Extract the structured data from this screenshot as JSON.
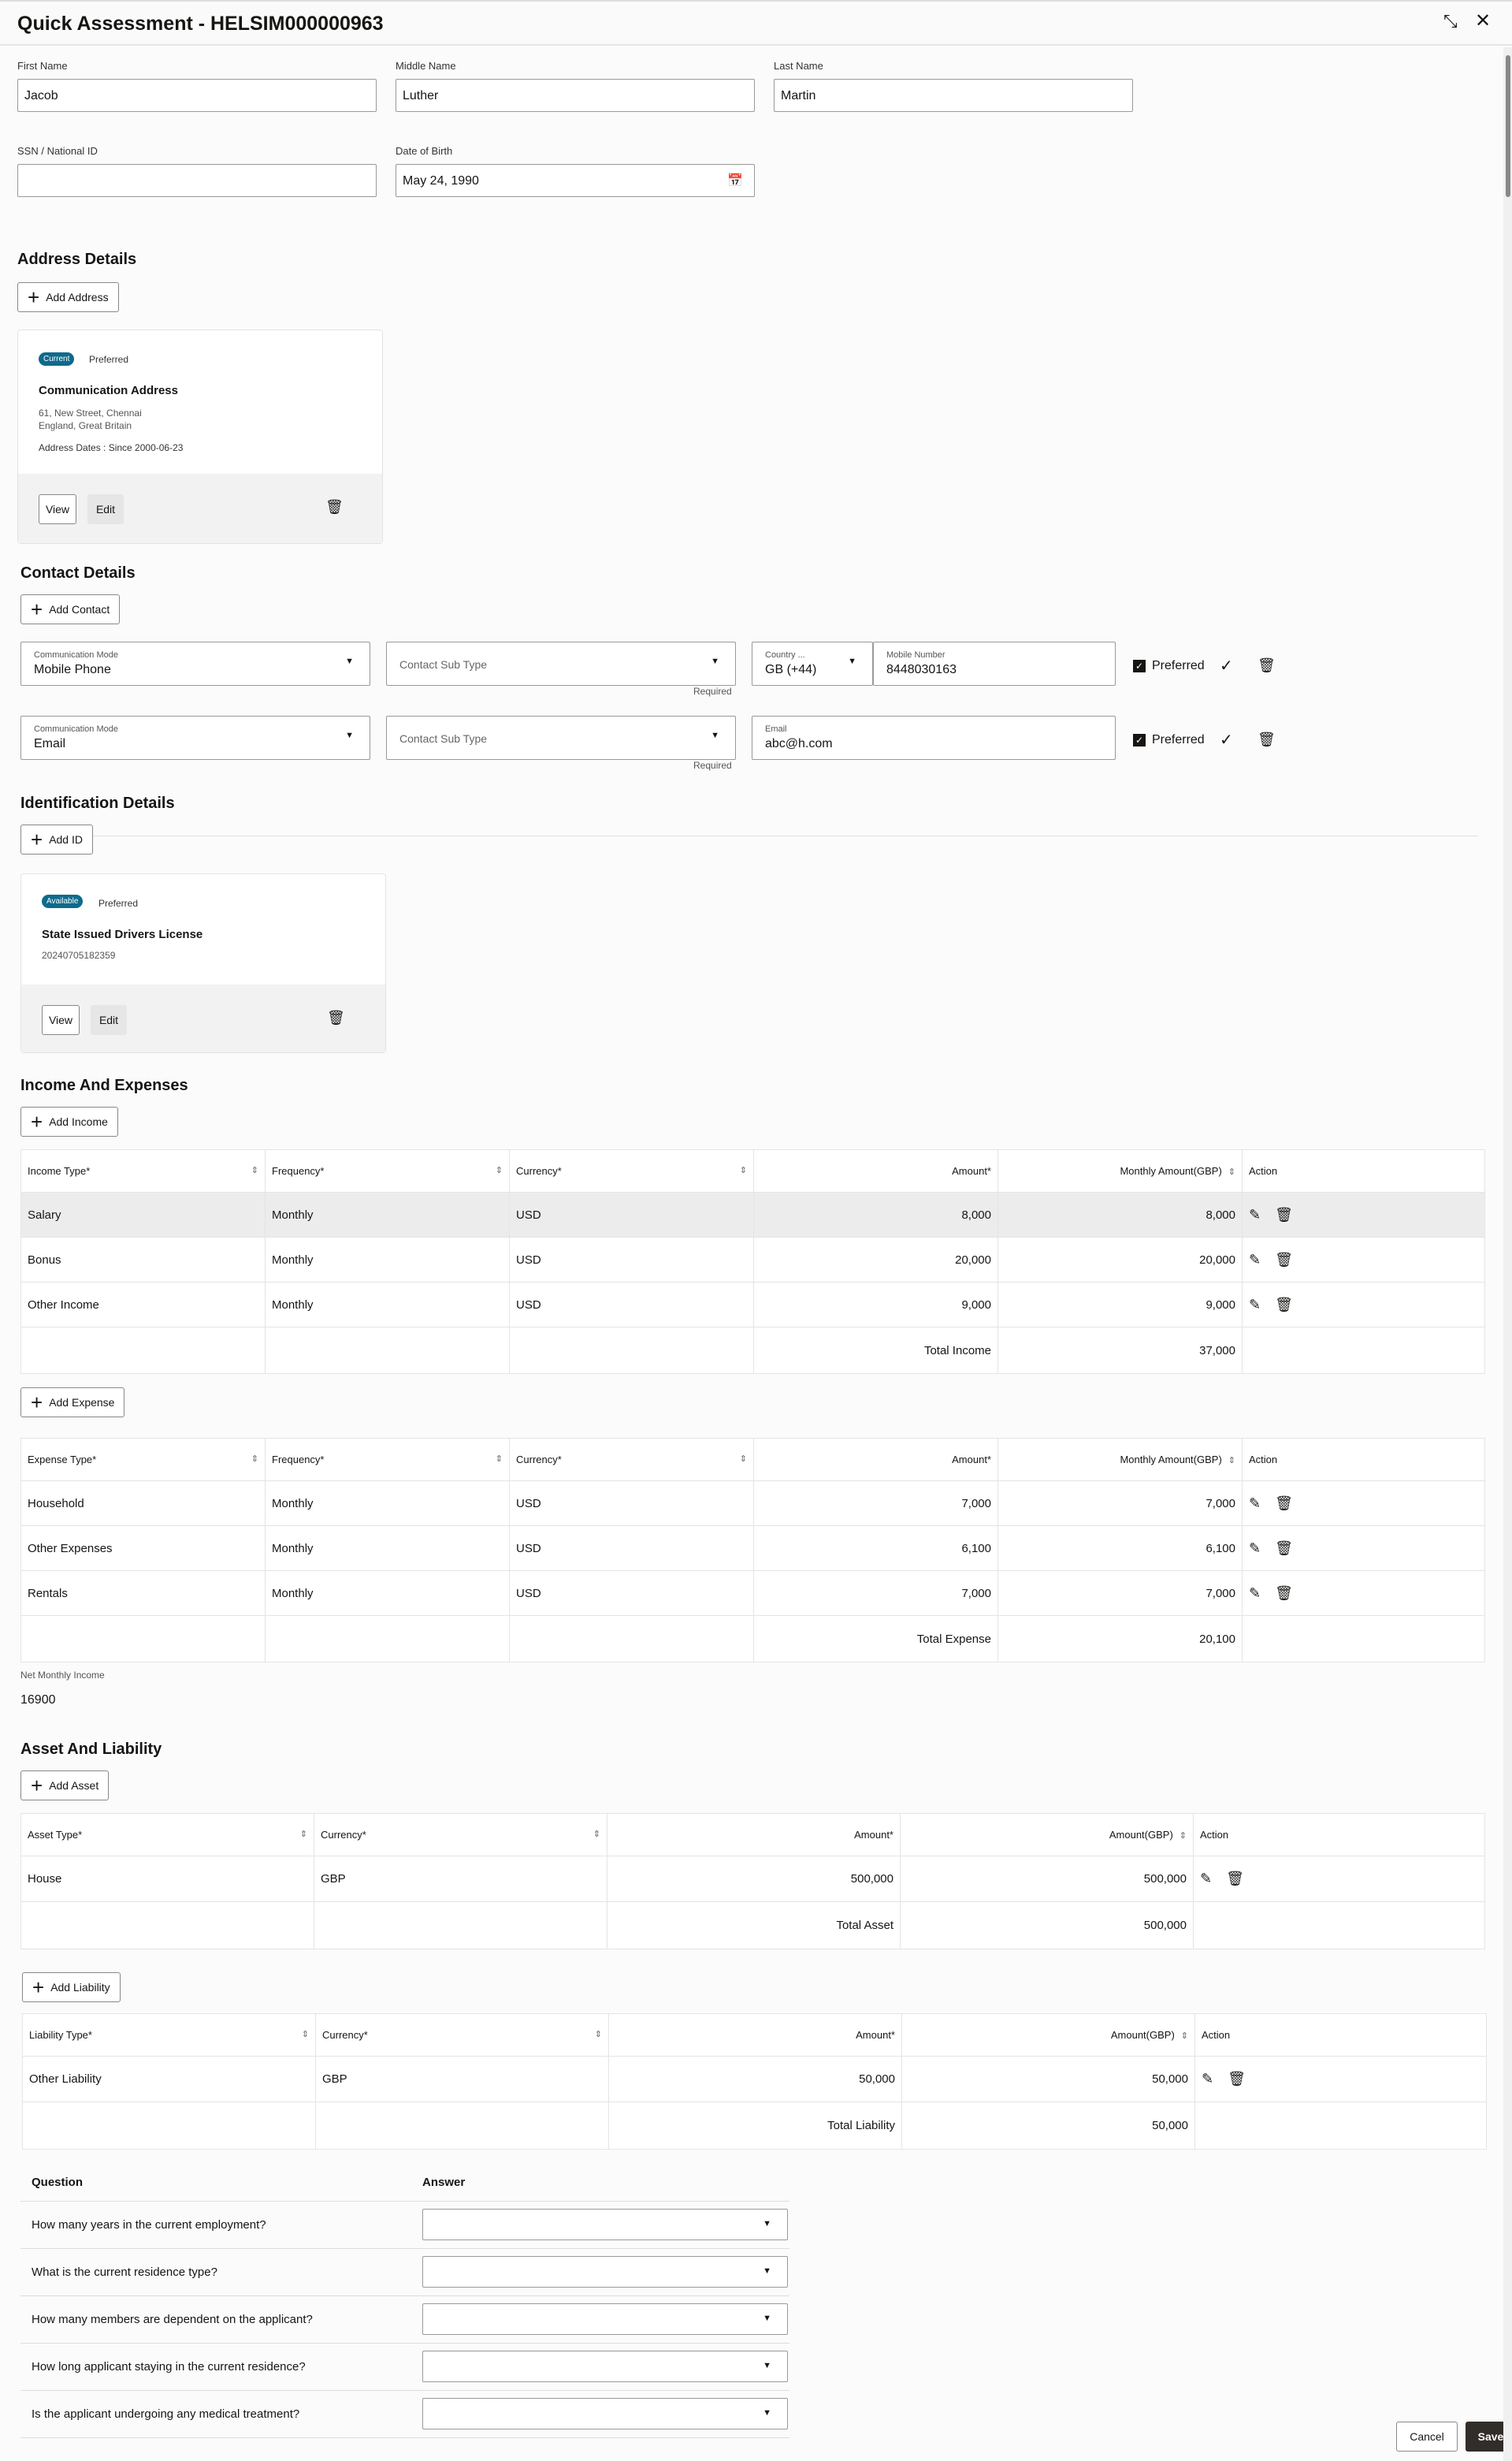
{
  "title": "Quick Assessment - HELSIM000000963",
  "personal": {
    "first_name_label": "First Name",
    "first_name": "Jacob",
    "middle_name_label": "Middle Name",
    "middle_name": "Luther",
    "last_name_label": "Last Name",
    "last_name": "Martin",
    "ssn_label": "SSN / National ID",
    "ssn": "",
    "dob_label": "Date of Birth",
    "dob": "May 24, 1990"
  },
  "address": {
    "heading": "Address Details",
    "add_label": "Add Address",
    "badge": "Current",
    "preferred": "Preferred",
    "title": "Communication Address",
    "line1": "61, New Street, Chennai",
    "line2": "England, Great Britain",
    "dates": "Address Dates : Since 2000-06-23",
    "view": "View",
    "edit": "Edit"
  },
  "contact": {
    "heading": "Contact Details",
    "add_label": "Add Contact",
    "rows": [
      {
        "mode_label": "Communication Mode",
        "mode": "Mobile Phone",
        "subtype_placeholder": "Contact Sub Type",
        "required": "Required",
        "country_label": "Country ...",
        "country": "GB (+44)",
        "value_label": "Mobile Number",
        "value": "8448030163",
        "preferred": "Preferred",
        "preferred_checked": true
      },
      {
        "mode_label": "Communication Mode",
        "mode": "Email",
        "subtype_placeholder": "Contact Sub Type",
        "required": "Required",
        "value_label": "Email",
        "value": "abc@h.com",
        "preferred": "Preferred",
        "preferred_checked": true
      }
    ]
  },
  "identification": {
    "heading": "Identification Details",
    "add_label": "Add ID",
    "badge": "Available",
    "preferred": "Preferred",
    "title": "State Issued Drivers License",
    "number": "20240705182359",
    "view": "View",
    "edit": "Edit"
  },
  "income_expenses": {
    "heading": "Income And Expenses",
    "add_income": "Add Income",
    "add_expense": "Add Expense",
    "income_table": {
      "headers": [
        "Income Type*",
        "Frequency*",
        "Currency*",
        "Amount*",
        "Monthly Amount(GBP)",
        "Action"
      ],
      "rows": [
        [
          "Salary",
          "Monthly",
          "USD",
          "8,000",
          "8,000"
        ],
        [
          "Bonus",
          "Monthly",
          "USD",
          "20,000",
          "20,000"
        ],
        [
          "Other Income",
          "Monthly",
          "USD",
          "9,000",
          "9,000"
        ]
      ],
      "total_label": "Total Income",
      "total": "37,000"
    },
    "expense_table": {
      "headers": [
        "Expense Type*",
        "Frequency*",
        "Currency*",
        "Amount*",
        "Monthly Amount(GBP)",
        "Action"
      ],
      "rows": [
        [
          "Household",
          "Monthly",
          "USD",
          "7,000",
          "7,000"
        ],
        [
          "Other Expenses",
          "Monthly",
          "USD",
          "6,100",
          "6,100"
        ],
        [
          "Rentals",
          "Monthly",
          "USD",
          "7,000",
          "7,000"
        ]
      ],
      "total_label": "Total Expense",
      "total": "20,100"
    },
    "net_label": "Net Monthly Income",
    "net_value": "16900"
  },
  "asset_liability": {
    "heading": "Asset And Liability",
    "add_asset": "Add Asset",
    "add_liability": "Add Liability",
    "asset_table": {
      "headers": [
        "Asset Type*",
        "Currency*",
        "Amount*",
        "Amount(GBP)",
        "Action"
      ],
      "rows": [
        [
          "House",
          "GBP",
          "500,000",
          "500,000"
        ]
      ],
      "total_label": "Total Asset",
      "total": "500,000"
    },
    "liability_table": {
      "headers": [
        "Liability Type*",
        "Currency*",
        "Amount*",
        "Amount(GBP)",
        "Action"
      ],
      "rows": [
        [
          "Other Liability",
          "GBP",
          "50,000",
          "50,000"
        ]
      ],
      "total_label": "Total Liability",
      "total": "50,000"
    }
  },
  "questions": {
    "question_header": "Question",
    "answer_header": "Answer",
    "items": [
      "How many years in the current employment?",
      "What is the current residence type?",
      "How many members are dependent on the applicant?",
      "How long applicant staying in the current residence?",
      "Is the applicant undergoing any medical treatment?"
    ]
  },
  "footer": {
    "cancel": "Cancel",
    "save": "Save"
  },
  "colors": {
    "badge": "#0e6a8c",
    "save_button": "#312d2a"
  }
}
